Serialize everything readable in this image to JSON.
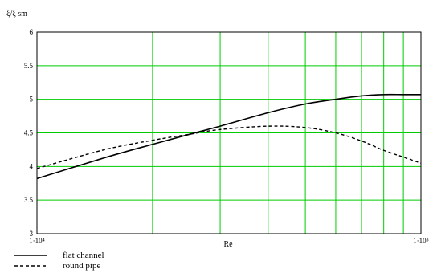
{
  "chart_data": {
    "type": "line",
    "ylabel": "ξ/ξ sm",
    "xlabel": "Re",
    "x_scale": "log",
    "xlim": [
      10000,
      100000
    ],
    "ylim": [
      3,
      6
    ],
    "x_tick_labels": [
      "1·10⁴",
      "1·10⁵"
    ],
    "y_ticks": [
      3,
      3.5,
      4,
      4.5,
      5,
      5.5,
      6
    ],
    "y_tick_labels": [
      "3",
      "3.5",
      "4",
      "4.5",
      "5",
      "5.5",
      "6"
    ],
    "grid": true,
    "grid_color": "#00cc00",
    "legend_position": "bottom-left",
    "series": [
      {
        "name": "flat channel",
        "style": "solid",
        "color": "#000000",
        "x": [
          10000,
          15000,
          20000,
          25000,
          30000,
          40000,
          50000,
          60000,
          70000,
          80000,
          90000,
          100000
        ],
        "y": [
          3.82,
          4.13,
          4.33,
          4.48,
          4.6,
          4.8,
          4.93,
          5.0,
          5.05,
          5.07,
          5.07,
          5.07
        ]
      },
      {
        "name": "round pipe",
        "style": "dashed",
        "color": "#000000",
        "x": [
          10000,
          15000,
          20000,
          25000,
          30000,
          40000,
          50000,
          60000,
          70000,
          80000,
          90000,
          100000
        ],
        "y": [
          3.97,
          4.25,
          4.39,
          4.48,
          4.55,
          4.6,
          4.58,
          4.5,
          4.38,
          4.24,
          4.14,
          4.05
        ]
      }
    ]
  }
}
